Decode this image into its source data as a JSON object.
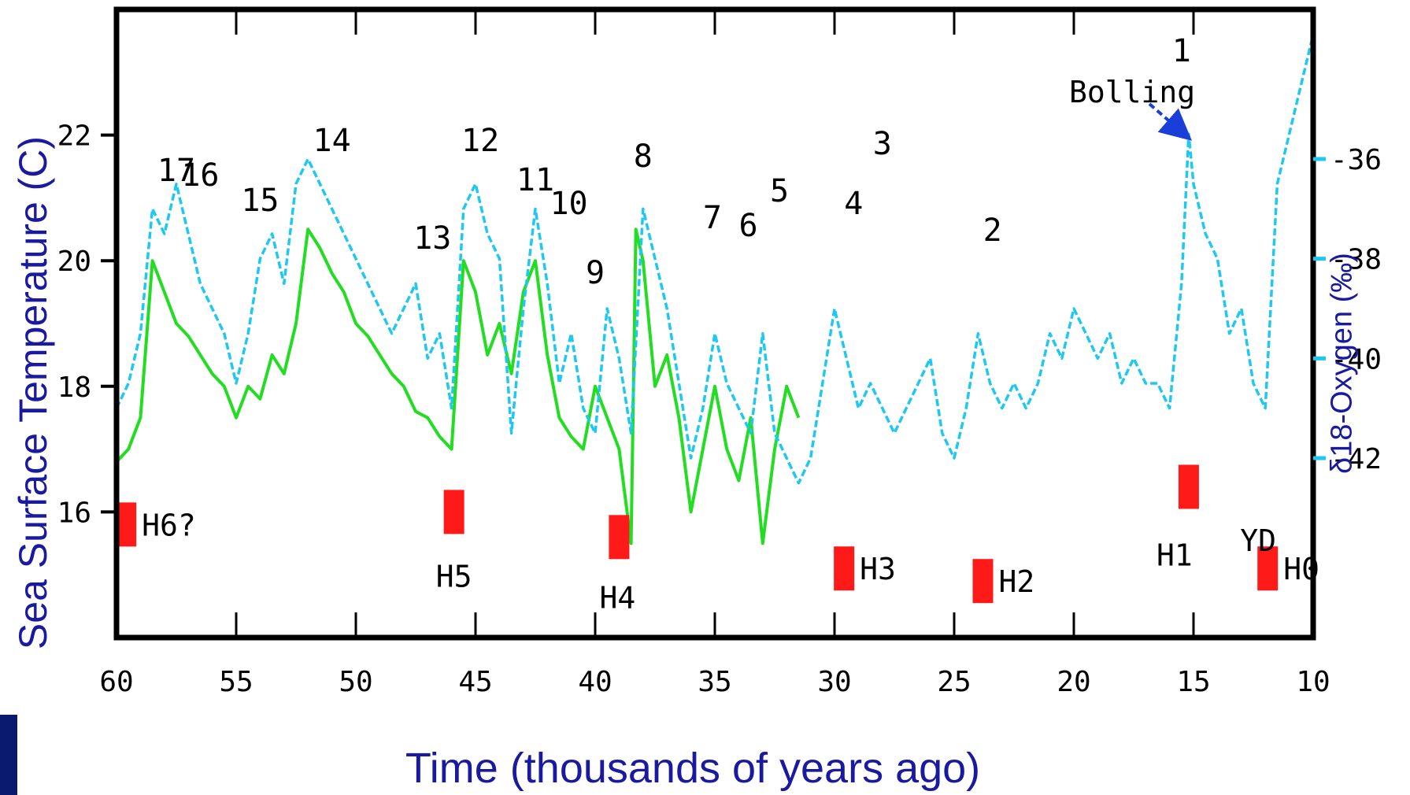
{
  "chart_data": {
    "type": "line",
    "xlabel": "Time (thousands of years ago)",
    "ylabel": "Sea Surface Temperature (C)",
    "y2label": "δ18-Oxygen (‰)",
    "xlim": [
      60,
      10
    ],
    "ylim": [
      14,
      24
    ],
    "y2lim": [
      -45.6,
      -33
    ],
    "x_ticks": [
      "60",
      "55",
      "50",
      "45",
      "40",
      "35",
      "30",
      "25",
      "20",
      "15",
      "10"
    ],
    "y_ticks": [
      "16",
      "18",
      "20",
      "22"
    ],
    "y2_ticks": [
      "-42",
      "-40",
      "-38",
      "-36"
    ],
    "colors": {
      "sea_surface_temperature": "#22dd22",
      "oxygen": "#1fc8f0",
      "heinrich": "#ff1a1a",
      "axis_labels": "#1a1aa0",
      "bolling_arrow": "#1a3fd8"
    },
    "series": [
      {
        "x": [
          60,
          59.5,
          59,
          58.5,
          58,
          57.5,
          57,
          56.5,
          56,
          55.5,
          55,
          54.5,
          54,
          53.5,
          53,
          52.5,
          52,
          51.5,
          51,
          50.5,
          50,
          49.5,
          49,
          48.5,
          48,
          47.5,
          47,
          46.5,
          46,
          45.5,
          45,
          44.5,
          44,
          43.5,
          43,
          42.5,
          42,
          41.5,
          41,
          40.5,
          40,
          39.5,
          39,
          38.5,
          38.3,
          38,
          37.5,
          37,
          36.5,
          36,
          35.5,
          35,
          34.5,
          34,
          33.5,
          33,
          32.5,
          32,
          31.5
        ],
        "values": [
          16.8,
          17.0,
          17.5,
          20.0,
          19.5,
          19.0,
          18.8,
          18.5,
          18.2,
          18.0,
          17.5,
          18.0,
          17.8,
          18.5,
          18.2,
          19.0,
          20.5,
          20.2,
          19.8,
          19.5,
          19.0,
          18.8,
          18.5,
          18.2,
          18.0,
          17.6,
          17.5,
          17.2,
          17.0,
          20.0,
          19.5,
          18.5,
          19.0,
          18.2,
          19.5,
          20.0,
          18.5,
          17.5,
          17.2,
          17.0,
          18.0,
          17.5,
          17.0,
          15.5,
          20.5,
          20.0,
          18.0,
          18.5,
          17.5,
          16.0,
          17.0,
          18.0,
          17.0,
          16.5,
          17.5,
          15.5,
          17.0,
          18.0,
          17.5
        ]
      },
      {
        "x": [
          60,
          59.5,
          59,
          58.5,
          58,
          57.5,
          57,
          56.5,
          56,
          55.5,
          55,
          54.5,
          54,
          53.5,
          53,
          52.5,
          52,
          51.5,
          51,
          50.5,
          50,
          49.5,
          49,
          48.5,
          48,
          47.5,
          47,
          46.5,
          46,
          45.5,
          45,
          44.5,
          44,
          43.5,
          43,
          42.5,
          42,
          41.5,
          41,
          40.5,
          40,
          39.5,
          39,
          38.5,
          38,
          37.5,
          37,
          36.5,
          36,
          35.5,
          35,
          34.5,
          34,
          33.5,
          33,
          32.5,
          32,
          31.5,
          31,
          30.5,
          30,
          29.5,
          29,
          28.5,
          28,
          27.5,
          27,
          26.5,
          26,
          25.5,
          25,
          24.5,
          24,
          23.5,
          23,
          22.5,
          22,
          21.5,
          21,
          20.5,
          20,
          19.5,
          19,
          18.5,
          18,
          17.5,
          17,
          16.5,
          16,
          15.5,
          15.2,
          15,
          14.5,
          14,
          13.5,
          13,
          12.5,
          12,
          11.5,
          11,
          10.5,
          10
        ],
        "values": [
          -41.0,
          -40.5,
          -39.5,
          -37.0,
          -37.5,
          -36.5,
          -37.5,
          -38.5,
          -39.0,
          -39.5,
          -40.5,
          -39.5,
          -38.0,
          -37.5,
          -38.5,
          -36.5,
          -36.0,
          -36.5,
          -37.0,
          -37.5,
          -38.0,
          -38.5,
          -39.0,
          -39.5,
          -39.0,
          -38.5,
          -40.0,
          -39.5,
          -41.0,
          -37.0,
          -36.5,
          -37.5,
          -38.0,
          -41.5,
          -39.0,
          -37.0,
          -38.5,
          -40.5,
          -39.5,
          -41.0,
          -41.5,
          -39.0,
          -40.0,
          -41.5,
          -37.0,
          -38.0,
          -39.0,
          -40.5,
          -42.0,
          -41.0,
          -39.5,
          -40.5,
          -41.0,
          -41.5,
          -39.5,
          -41.5,
          -42.0,
          -42.5,
          -42.0,
          -40.5,
          -39.0,
          -40.0,
          -41.0,
          -40.5,
          -41.0,
          -41.5,
          -41.0,
          -40.5,
          -40.0,
          -41.5,
          -42.0,
          -41.0,
          -39.5,
          -40.5,
          -41.0,
          -40.5,
          -41.0,
          -40.5,
          -39.5,
          -40.0,
          -39.0,
          -39.5,
          -40.0,
          -39.5,
          -40.5,
          -40.0,
          -40.5,
          -40.5,
          -41.0,
          -38.5,
          -35.5,
          -36.5,
          -37.5,
          -38.0,
          -39.5,
          -39.0,
          -40.5,
          -41.0,
          -36.5,
          -35.5,
          -34.5,
          -33.5
        ]
      }
    ],
    "numbered_events": [
      {
        "label": "17",
        "x": 57.5
      },
      {
        "label": "16",
        "x": 56.5
      },
      {
        "label": "15",
        "x": 54
      },
      {
        "label": "14",
        "x": 51
      },
      {
        "label": "13",
        "x": 46.8
      },
      {
        "label": "12",
        "x": 44.8
      },
      {
        "label": "11",
        "x": 42.5
      },
      {
        "label": "10",
        "x": 41.1
      },
      {
        "label": "9",
        "x": 40
      },
      {
        "label": "8",
        "x": 38
      },
      {
        "label": "7",
        "x": 35.1
      },
      {
        "label": "6",
        "x": 33.6
      },
      {
        "label": "5",
        "x": 32.3
      },
      {
        "label": "4",
        "x": 29.2
      },
      {
        "label": "3",
        "x": 28
      },
      {
        "label": "2",
        "x": 23.4
      },
      {
        "label": "1",
        "x": 15.5
      }
    ],
    "heinrich_events": [
      {
        "label": "H6?",
        "x": 59.6,
        "y": 15.8
      },
      {
        "label": "H5",
        "x": 45.9,
        "y": 16.0
      },
      {
        "label": "H4",
        "x": 39,
        "y": 15.6
      },
      {
        "label": "H3",
        "x": 29.6,
        "y": 15.1
      },
      {
        "label": "H2",
        "x": 23.8,
        "y": 14.9
      },
      {
        "label": "H1",
        "x": 15.2,
        "y": 16.4
      },
      {
        "label": "H0",
        "x": 11.9,
        "y": 15.1
      }
    ],
    "annotations": [
      {
        "label": "Bolling",
        "x": 15.2,
        "y": 21.9
      },
      {
        "label": "YD",
        "x": 12.3,
        "y": 16.0
      }
    ]
  }
}
